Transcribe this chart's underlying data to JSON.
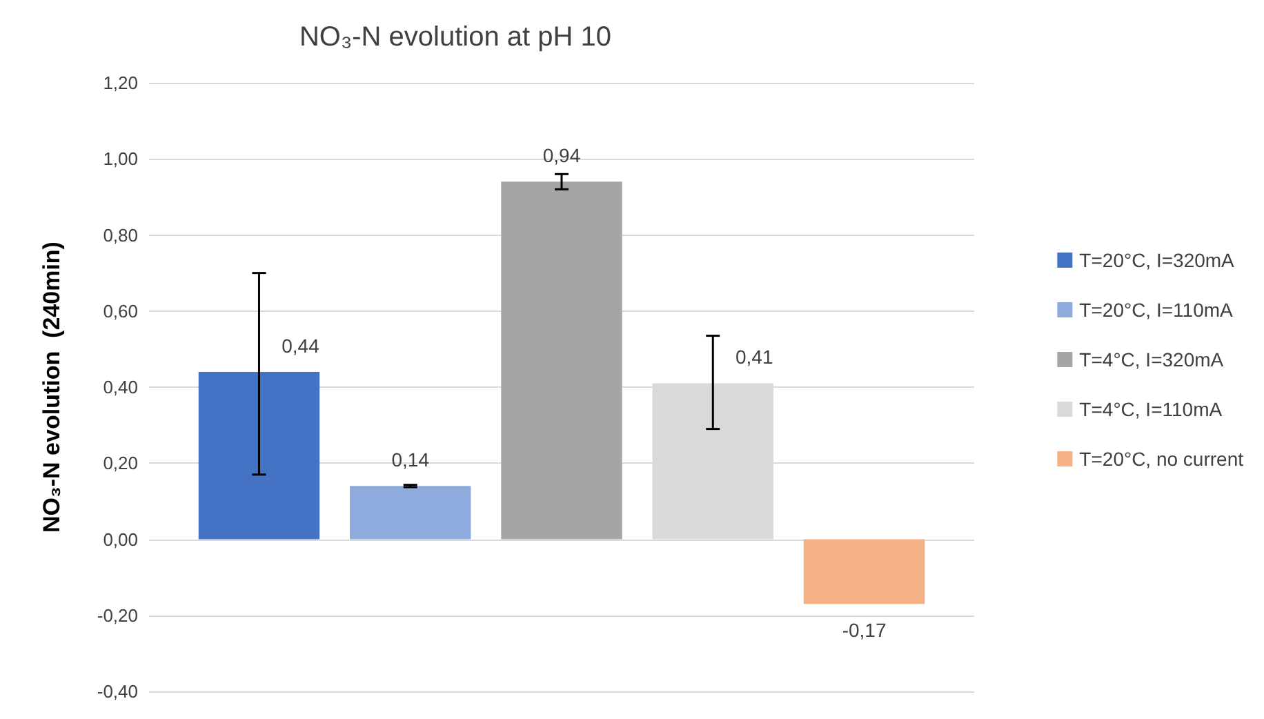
{
  "chart_data": {
    "type": "bar",
    "title": "NO₃-N evolution at pH 10",
    "ylabel": "NO₃-N evolution  (240min)",
    "categories": [
      null
    ],
    "series": [
      {
        "name": "T=20°C, I=320mA",
        "color": "#4472c4",
        "values": [
          0.44
        ],
        "errors": [
          [
            0.17,
            0.7
          ]
        ],
        "value_labels": [
          "0,44"
        ]
      },
      {
        "name": "T=20°C, I=110mA",
        "color": "#8faadc",
        "values": [
          0.14
        ],
        "errors": [
          [
            0.137,
            0.143
          ]
        ],
        "value_labels": [
          "0,14"
        ]
      },
      {
        "name": "T=4°C, I=320mA",
        "color": "#a5a5a5",
        "values": [
          0.94
        ],
        "errors": [
          [
            0.92,
            0.96
          ]
        ],
        "value_labels": [
          "0,94"
        ]
      },
      {
        "name": "T=4°C, I=110mA",
        "color": "#d9d9d9",
        "values": [
          0.41
        ],
        "errors": [
          [
            0.29,
            0.535
          ]
        ],
        "value_labels": [
          "0,41"
        ]
      },
      {
        "name": "T=20°C, no current",
        "color": "#f4b183",
        "values": [
          -0.17
        ],
        "value_labels": [
          "-0,17"
        ]
      }
    ],
    "ylim": [
      -0.4,
      1.2
    ],
    "yticks": [
      {
        "value": -0.4,
        "label": "-0,40"
      },
      {
        "value": -0.2,
        "label": "-0,20"
      },
      {
        "value": 0,
        "label": "0,00"
      },
      {
        "value": 0.2,
        "label": "0,20"
      },
      {
        "value": 0.4,
        "label": "0,40"
      },
      {
        "value": 0.6,
        "label": "0,60"
      },
      {
        "value": 0.8,
        "label": "0,80"
      },
      {
        "value": 1.0,
        "label": "1,00"
      },
      {
        "value": 1.2,
        "label": "1,20"
      }
    ],
    "grid": "y",
    "legend": "right"
  }
}
